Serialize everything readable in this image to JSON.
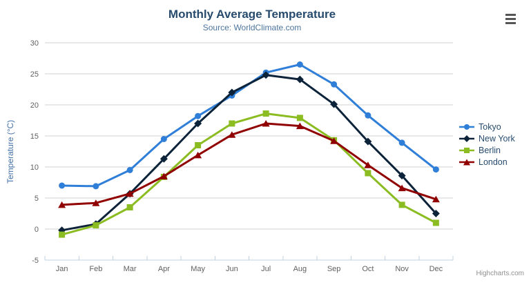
{
  "chart": {
    "title": "Monthly Average Temperature",
    "subtitle": "Source: WorldClimate.com",
    "y_axis_title": "Temperature (°C)",
    "credits": "Highcharts.com"
  },
  "colors": {
    "title": "#274b6d",
    "subtitle": "#4d759e",
    "axis_title": "#4572A7",
    "axis_labels": "#606060",
    "gridline": "#D0D0D0",
    "axis_line": "#C0D0E0",
    "legend_text": "#274b6d",
    "credits_text": "#909090",
    "menu_icon": "#555555"
  },
  "chart_data": {
    "type": "line",
    "title": "Monthly Average Temperature",
    "subtitle": "Source: WorldClimate.com",
    "xlabel": "",
    "ylabel": "Temperature (°C)",
    "ylim": [
      -5,
      30
    ],
    "ytick_interval": 5,
    "grid": true,
    "legend_position": "right",
    "categories": [
      "Jan",
      "Feb",
      "Mar",
      "Apr",
      "May",
      "Jun",
      "Jul",
      "Aug",
      "Sep",
      "Oct",
      "Nov",
      "Dec"
    ],
    "series": [
      {
        "name": "Tokyo",
        "color": "#2f7ed8",
        "marker": "circle",
        "values": [
          7.0,
          6.9,
          9.5,
          14.5,
          18.2,
          21.5,
          25.2,
          26.5,
          23.3,
          18.3,
          13.9,
          9.6
        ]
      },
      {
        "name": "New York",
        "color": "#0d233a",
        "marker": "diamond",
        "values": [
          -0.2,
          0.8,
          5.7,
          11.3,
          17.0,
          22.0,
          24.8,
          24.1,
          20.1,
          14.1,
          8.6,
          2.5
        ]
      },
      {
        "name": "Berlin",
        "color": "#8bbc21",
        "marker": "square",
        "values": [
          -0.9,
          0.6,
          3.5,
          8.4,
          13.5,
          17.0,
          18.6,
          17.9,
          14.3,
          9.0,
          3.9,
          1.0
        ]
      },
      {
        "name": "London",
        "color": "#910000",
        "marker": "triangle",
        "values": [
          3.9,
          4.2,
          5.7,
          8.5,
          11.9,
          15.2,
          17.0,
          16.6,
          14.2,
          10.3,
          6.6,
          4.8
        ]
      }
    ]
  }
}
